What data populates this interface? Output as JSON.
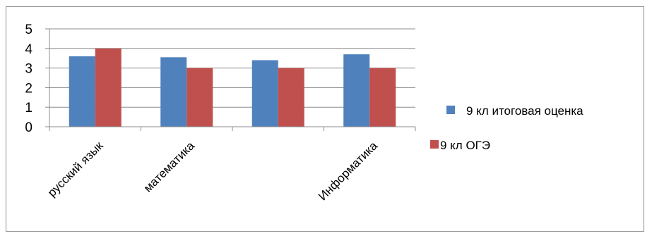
{
  "chart_data": {
    "type": "bar",
    "categories": [
      "русский язык",
      "математика",
      "",
      "Информатика"
    ],
    "series": [
      {
        "name": "9 кл итоговая оценка",
        "values": [
          3.6,
          3.55,
          3.4,
          3.7
        ],
        "color": "#4f81bd"
      },
      {
        "name": "9 кл ОГЭ",
        "values": [
          4.0,
          3.0,
          3.0,
          3.0
        ],
        "color": "#c0504d"
      }
    ],
    "yticks": [
      "0",
      "1",
      "2",
      "3",
      "4",
      "5"
    ],
    "ylim": [
      0,
      5
    ],
    "grid": true,
    "legend_position": "right"
  }
}
